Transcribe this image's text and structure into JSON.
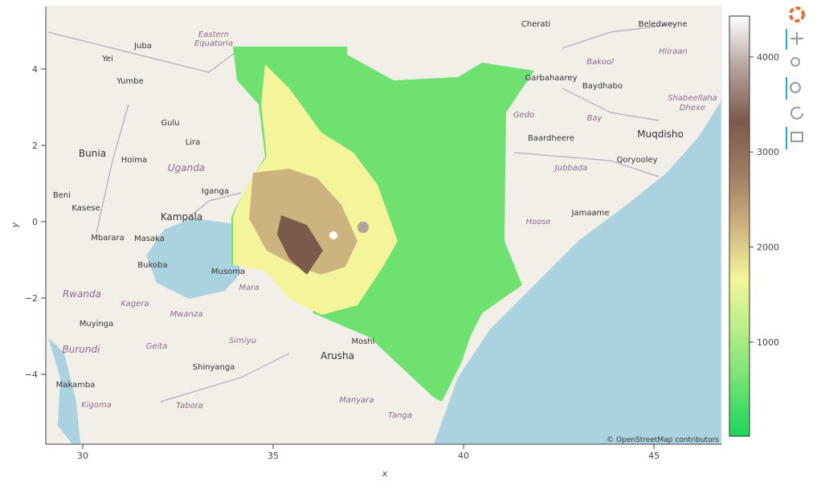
{
  "chart_data": {
    "type": "image",
    "x_label": "x",
    "y_label": "y",
    "xlim": [
      29.03,
      46.77
    ],
    "ylim": [
      -5.83,
      5.64
    ],
    "xticks": [
      30,
      35,
      40,
      45
    ],
    "yticks": [
      {
        "value": 4,
        "label": "4"
      },
      {
        "value": 2,
        "label": "2"
      },
      {
        "value": 0,
        "label": "0"
      },
      {
        "value": -2,
        "label": "−2"
      },
      {
        "value": -4,
        "label": "−4"
      }
    ],
    "colorbar": {
      "clim": [
        11,
        4430
      ],
      "ticks": [
        1000,
        2000,
        3000,
        4000
      ],
      "colors": [
        "#19d65a",
        "#6fe170",
        "#b6ee88",
        "#f4f49a",
        "#cdb47e",
        "#9c7d62",
        "#7b5a4c",
        "#b4a19c",
        "#ffffff"
      ]
    },
    "attribution": "© OpenStreetMap contributors",
    "places": [
      "Juba",
      "Yei",
      "Yumbe",
      "Gulu",
      "Lira",
      "Bunia",
      "Hoima",
      "Uganda",
      "Iganga",
      "Kampala",
      "Beni",
      "Kasese",
      "Mbarara",
      "Masaka",
      "Bukoba",
      "Musoma",
      "Mara",
      "Rwanda",
      "Kagera",
      "Mwanza",
      "Muyinga",
      "Burundi",
      "Geita",
      "Simiyu",
      "Shinyanga",
      "Arusha",
      "Moshi",
      "Kigoma",
      "Tabora",
      "Manyara",
      "Tanga",
      "Makamba",
      "Cherati",
      "Beledweyne",
      "Garbahaarey",
      "Baydhabo",
      "Bakool",
      "Hiiraan",
      "Gedo",
      "Bay",
      "Baardheere",
      "Muqdisho",
      "Qoryooley",
      "Jamaame",
      "Eastern",
      "Equatoria",
      "Shabeellaha",
      "Dhexe",
      "Jubbada",
      "Hoose"
    ]
  }
}
